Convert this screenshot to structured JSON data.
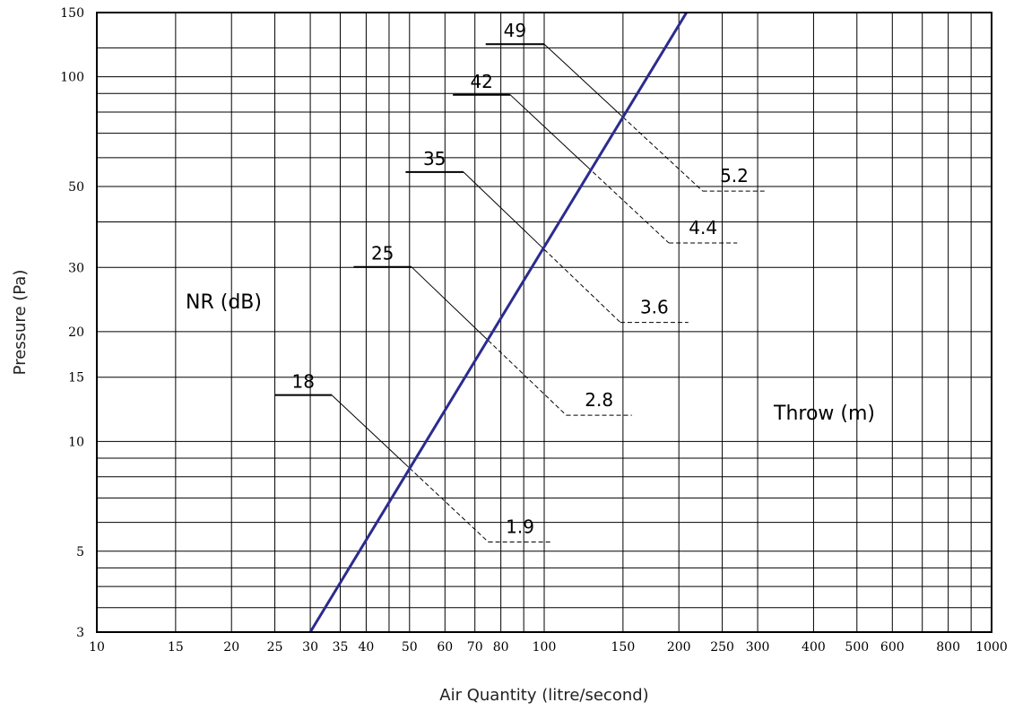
{
  "chart_data": {
    "type": "line",
    "xlabel": "Air Quantity (litre/second)",
    "ylabel": "Pressure (Pa)",
    "xscale": "log",
    "yscale": "log",
    "xlim": [
      10,
      1000
    ],
    "ylim": [
      3,
      150
    ],
    "grid": true,
    "x_ticks": [
      10,
      15,
      20,
      25,
      30,
      35,
      40,
      50,
      60,
      70,
      80,
      100,
      150,
      200,
      250,
      300,
      400,
      500,
      600,
      800,
      1000
    ],
    "x_tick_labels": [
      "10",
      "15",
      "20",
      "25",
      "30",
      "35",
      "40",
      "50",
      "60",
      "70",
      "80",
      "100",
      "150",
      "200",
      "250",
      "300",
      "400",
      "500",
      "600",
      "800",
      "1000"
    ],
    "y_ticks": [
      3,
      5,
      10,
      15,
      20,
      30,
      50,
      100,
      150
    ],
    "y_tick_labels": [
      "3",
      "5",
      "10",
      "15",
      "20",
      "30",
      "50",
      "100",
      "150"
    ],
    "x_grid": [
      10,
      15,
      20,
      25,
      30,
      35,
      40,
      45,
      50,
      60,
      70,
      80,
      90,
      100,
      150,
      200,
      250,
      300,
      400,
      500,
      600,
      700,
      800,
      900,
      1000
    ],
    "y_grid": [
      3,
      3.5,
      4,
      4.5,
      5,
      6,
      7,
      8,
      9,
      10,
      15,
      20,
      30,
      40,
      50,
      60,
      70,
      80,
      90,
      100,
      120,
      150
    ],
    "series": [
      {
        "color": "#2b2b8f",
        "x": [
          30,
          208
        ],
        "y": [
          3,
          150
        ]
      }
    ],
    "annotations": {
      "nr_title": "NR (dB)",
      "throw_title": "Throw (m)",
      "nr_lines": [
        {
          "nr": "18",
          "throw": "1.9",
          "y_nr": 13.4,
          "x_start": 25,
          "x_bend": 33.5,
          "x_cross": 50,
          "x_dash": 75,
          "y_throw": 5.3,
          "x_end": 104
        },
        {
          "nr": "25",
          "throw": "2.8",
          "y_nr": 30.1,
          "x_start": 37.5,
          "x_bend": 50.5,
          "x_cross": 75,
          "x_dash": 112,
          "y_throw": 11.8,
          "x_end": 157
        },
        {
          "nr": "35",
          "throw": "3.6",
          "y_nr": 54.8,
          "x_start": 49,
          "x_bend": 66,
          "x_cross": 100,
          "x_dash": 148,
          "y_throw": 21.2,
          "x_end": 210
        },
        {
          "nr": "42",
          "throw": "4.4",
          "y_nr": 89.2,
          "x_start": 62.5,
          "x_bend": 84,
          "x_cross": 125,
          "x_dash": 190,
          "y_throw": 35.0,
          "x_end": 270
        },
        {
          "nr": "49",
          "throw": "5.2",
          "y_nr": 122.9,
          "x_start": 74,
          "x_bend": 100,
          "x_cross": 150,
          "x_dash": 226,
          "y_throw": 48.6,
          "x_end": 313
        }
      ]
    }
  }
}
